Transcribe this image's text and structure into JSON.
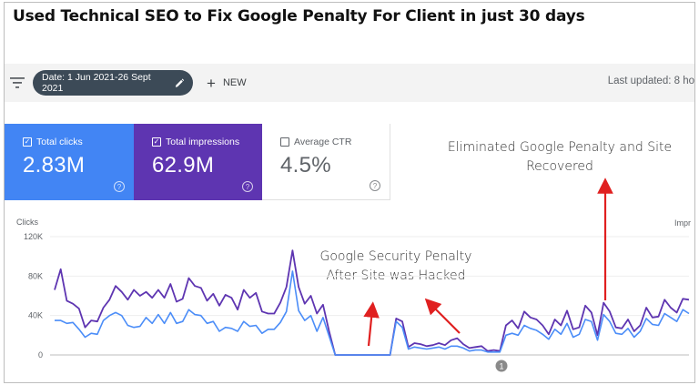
{
  "headline": "Used Technical SEO to Fix Google Penalty For Client in just 30 days",
  "toolbar": {
    "filter_icon": "filter-icon",
    "date_chip_label": "Date: 1 Jun 2021-26 Sept 2021",
    "new_label": "NEW",
    "last_updated": "Last updated: 8 ho"
  },
  "cards": {
    "clicks": {
      "label": "Total clicks",
      "value": "2.83M",
      "checked": true,
      "color": "#4285f4"
    },
    "impressions": {
      "label": "Total impressions",
      "value": "62.9M",
      "checked": true,
      "color": "#5e35b1"
    },
    "ctr": {
      "label": "Average CTR",
      "value": "4.5%",
      "checked": false
    }
  },
  "annotations": {
    "recovered": "Eliminated Google Penalty and Site Recovered",
    "penalty_line1": "Google Security Penalty",
    "penalty_line2": "After Site was Hacked"
  },
  "chart_data": {
    "type": "line",
    "ylabel_left": "Clicks",
    "ylabel_right": "Impr",
    "y_ticks": [
      "120K",
      "80K",
      "40K",
      "0"
    ],
    "ylim": [
      0,
      120000
    ],
    "marker": "1",
    "series": [
      {
        "name": "Total impressions",
        "color": "#5e35b1",
        "values": [
          66000,
          87000,
          55000,
          52000,
          47000,
          28000,
          35000,
          34000,
          48000,
          56000,
          70000,
          64000,
          56000,
          66000,
          60000,
          64000,
          58000,
          66000,
          58000,
          72000,
          54000,
          57000,
          78000,
          70000,
          68000,
          55000,
          62000,
          50000,
          61000,
          58000,
          46000,
          66000,
          58000,
          63000,
          44000,
          42000,
          42000,
          53000,
          69000,
          106000,
          69000,
          52000,
          60000,
          42000,
          51000,
          24000,
          0,
          0,
          0,
          0,
          0,
          0,
          0,
          0,
          0,
          0,
          37000,
          34000,
          8000,
          12000,
          11000,
          9000,
          10000,
          12000,
          10000,
          15000,
          17000,
          11000,
          7000,
          8000,
          9000,
          4000,
          5000,
          4000,
          30000,
          35000,
          27000,
          44000,
          38000,
          36000,
          30000,
          21000,
          36000,
          30000,
          45000,
          26000,
          28000,
          50000,
          43000,
          20000,
          53000,
          44000,
          28000,
          27000,
          36000,
          24000,
          30000,
          48000,
          38000,
          39000,
          56000,
          48000,
          43000,
          57000,
          56000
        ],
        "ylim": [
          0,
          120000
        ]
      },
      {
        "name": "Total clicks",
        "color": "#4b8df8",
        "values": [
          35000,
          35000,
          32000,
          33000,
          26000,
          18000,
          22000,
          21000,
          35000,
          40000,
          43000,
          40000,
          30000,
          28000,
          29000,
          38000,
          32000,
          41000,
          32000,
          43000,
          32000,
          34000,
          46000,
          41000,
          40000,
          32000,
          34000,
          24000,
          28000,
          27000,
          24000,
          34000,
          29000,
          30000,
          22000,
          26000,
          26000,
          33000,
          44000,
          85000,
          45000,
          35000,
          40000,
          24000,
          38000,
          19000,
          0,
          0,
          0,
          0,
          0,
          0,
          0,
          0,
          0,
          0,
          34000,
          28000,
          6000,
          8000,
          7000,
          6000,
          7000,
          8000,
          6000,
          9000,
          9000,
          7000,
          4000,
          5000,
          5000,
          3000,
          3000,
          3000,
          20000,
          22000,
          20000,
          30000,
          27000,
          25000,
          21000,
          16000,
          26000,
          21000,
          32000,
          18000,
          21000,
          36000,
          34000,
          15000,
          41000,
          34000,
          22000,
          21000,
          27000,
          18000,
          24000,
          37000,
          31000,
          30000,
          42000,
          38000,
          34000,
          46000,
          42000
        ],
        "ylim": [
          0,
          120000
        ]
      }
    ]
  }
}
